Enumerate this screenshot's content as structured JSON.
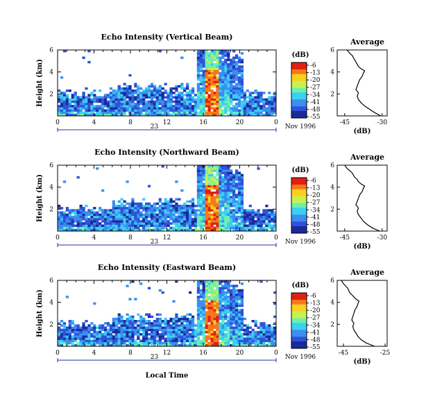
{
  "chart_data": [
    {
      "type": "heatmap",
      "title": "Echo Intensity (Vertical Beam)",
      "ylabel": "Height (km)",
      "xlabel": "",
      "x_ticks": [
        "0",
        "4",
        "8",
        "12",
        "16",
        "20",
        "0"
      ],
      "y_ticks": [
        "6",
        "4",
        "2"
      ],
      "date_day": "23",
      "date_month": "Nov 1996",
      "colorbar": {
        "label": "(dB)",
        "ticks": [
          "-6",
          "-13",
          "-20",
          "-27",
          "-34",
          "-41",
          "-48",
          "-55"
        ]
      },
      "xlim": [
        0,
        24
      ],
      "ylim": [
        0,
        6
      ],
      "profile": {
        "title": "Average",
        "xlabel": "(dB)",
        "xlim": [
          -48,
          -28
        ],
        "x_ticks": [
          "-45",
          "-30"
        ],
        "y_ticks": [
          "6",
          "4",
          "2"
        ],
        "heights": [
          0.0,
          0.3,
          0.6,
          0.9,
          1.2,
          1.5,
          1.8,
          2.1,
          2.4,
          2.7,
          3.0,
          3.3,
          3.6,
          3.9,
          4.1,
          4.3,
          4.5,
          4.7,
          4.9,
          5.1,
          5.3,
          5.5,
          5.7,
          6.0
        ],
        "values": [
          -30.5,
          -33,
          -35,
          -37,
          -38.5,
          -39.5,
          -40,
          -39.5,
          -40.5,
          -40,
          -39.5,
          -39,
          -38,
          -37.5,
          -37,
          -38.5,
          -39.5,
          -40,
          -40.5,
          -41,
          -41.5,
          -42,
          -43,
          -44
        ]
      }
    },
    {
      "type": "heatmap",
      "title": "Echo Intensity (Northward Beam)",
      "ylabel": "Height (km)",
      "xlabel": "",
      "x_ticks": [
        "0",
        "4",
        "8",
        "12",
        "16",
        "20",
        "0"
      ],
      "y_ticks": [
        "6",
        "4",
        "2"
      ],
      "date_day": "23",
      "date_month": "Nov 1996",
      "colorbar": {
        "label": "(dB)",
        "ticks": [
          "-6",
          "-13",
          "-20",
          "-27",
          "-34",
          "-41",
          "-48",
          "-55"
        ]
      },
      "xlim": [
        0,
        24
      ],
      "ylim": [
        0,
        6
      ],
      "profile": {
        "title": "Average",
        "xlabel": "(dB)",
        "xlim": [
          -48,
          -28
        ],
        "x_ticks": [
          "-45",
          "-30"
        ],
        "y_ticks": [
          "6",
          "4",
          "2"
        ],
        "heights": [
          0.0,
          0.3,
          0.6,
          0.9,
          1.2,
          1.5,
          1.8,
          2.1,
          2.4,
          2.7,
          3.0,
          3.3,
          3.6,
          3.9,
          4.1,
          4.3,
          4.5,
          4.7,
          4.9,
          5.1,
          5.3,
          5.5,
          5.7,
          6.0
        ],
        "values": [
          -31,
          -34,
          -36,
          -37.5,
          -38.5,
          -39.5,
          -40,
          -39.5,
          -40.5,
          -40,
          -39.5,
          -39,
          -38,
          -37.5,
          -37,
          -38.5,
          -39.5,
          -40,
          -41,
          -41.5,
          -42,
          -43,
          -44,
          -45
        ]
      }
    },
    {
      "type": "heatmap",
      "title": "Echo Intensity (Eastward Beam)",
      "ylabel": "Height (km)",
      "xlabel": "Local Time",
      "x_ticks": [
        "0",
        "4",
        "8",
        "12",
        "16",
        "20",
        "0"
      ],
      "y_ticks": [
        "6",
        "4",
        "2"
      ],
      "date_day": "23",
      "date_month": "Nov 1996",
      "colorbar": {
        "label": "(dB)",
        "ticks": [
          "-6",
          "-13",
          "-20",
          "-27",
          "-34",
          "-41",
          "-48",
          "-55"
        ]
      },
      "xlim": [
        0,
        24
      ],
      "ylim": [
        0,
        6
      ],
      "profile": {
        "title": "Average",
        "xlabel": "(dB)",
        "xlim": [
          -48,
          -24
        ],
        "x_ticks": [
          "-45",
          "-25"
        ],
        "y_ticks": [
          "6",
          "4",
          "2"
        ],
        "heights": [
          0.0,
          0.3,
          0.6,
          0.9,
          1.2,
          1.5,
          1.8,
          2.1,
          2.4,
          2.7,
          3.0,
          3.3,
          3.6,
          3.9,
          4.1,
          4.3,
          4.5,
          4.7,
          4.9,
          5.1,
          5.3,
          5.5,
          5.7,
          6.0
        ],
        "values": [
          -30,
          -34,
          -36.5,
          -38,
          -39,
          -40,
          -40.5,
          -40,
          -41,
          -40.5,
          -40,
          -39.5,
          -38.5,
          -38,
          -37.5,
          -39,
          -40,
          -41,
          -42,
          -42.5,
          -43,
          -44,
          -45,
          -46
        ]
      }
    }
  ],
  "colors": {
    "colormap": [
      "#1a2a9a",
      "#2e52d8",
      "#3a8ff0",
      "#3ad0f0",
      "#6cf0b0",
      "#c8f050",
      "#f8d020",
      "#f87818",
      "#e02010"
    ]
  }
}
